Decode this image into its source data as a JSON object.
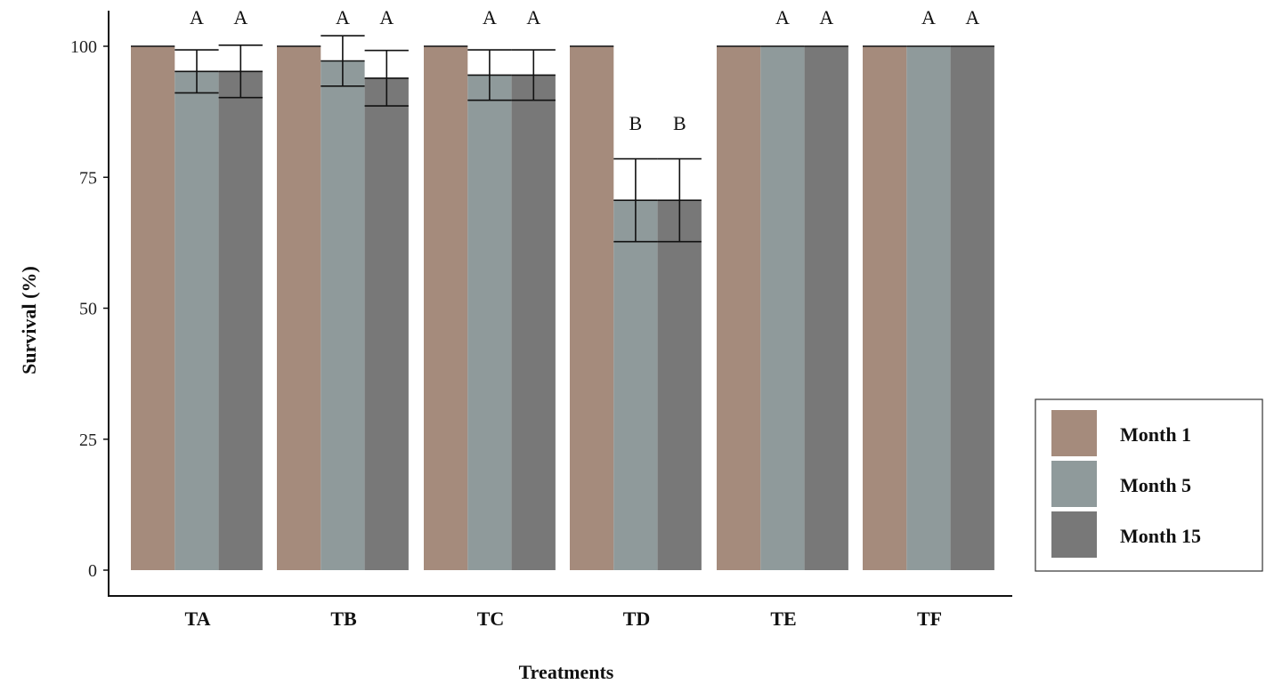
{
  "chart_data": {
    "type": "bar",
    "title": "",
    "xlabel": "Treatments",
    "ylabel": "Survival (%)",
    "ylim": [
      0,
      105
    ],
    "yticks": [
      0,
      25,
      50,
      75,
      100
    ],
    "grid": false,
    "legend_position": "right",
    "categories": [
      "TA",
      "TB",
      "TC",
      "TD",
      "TE",
      "TF"
    ],
    "series": [
      {
        "name": "Month 1",
        "color": "#a58b7c",
        "values": [
          100,
          100,
          100,
          100,
          100,
          100
        ],
        "error": [
          0,
          0,
          0,
          0,
          0,
          0
        ],
        "significance": [
          "",
          "",
          "",
          "",
          "",
          ""
        ]
      },
      {
        "name": "Month 5",
        "color": "#8f9a9b",
        "values": [
          95.2,
          97.2,
          94.5,
          70.6,
          100,
          100
        ],
        "error": [
          4.1,
          4.8,
          4.8,
          7.9,
          0,
          0
        ],
        "significance": [
          "A",
          "A",
          "A",
          "B",
          "A",
          "A"
        ]
      },
      {
        "name": "Month 15",
        "color": "#787878",
        "values": [
          95.2,
          93.9,
          94.5,
          70.6,
          100,
          100
        ],
        "error": [
          5.0,
          5.3,
          4.8,
          7.9,
          0,
          0
        ],
        "significance": [
          "A",
          "A",
          "A",
          "B",
          "A",
          "A"
        ]
      }
    ]
  }
}
